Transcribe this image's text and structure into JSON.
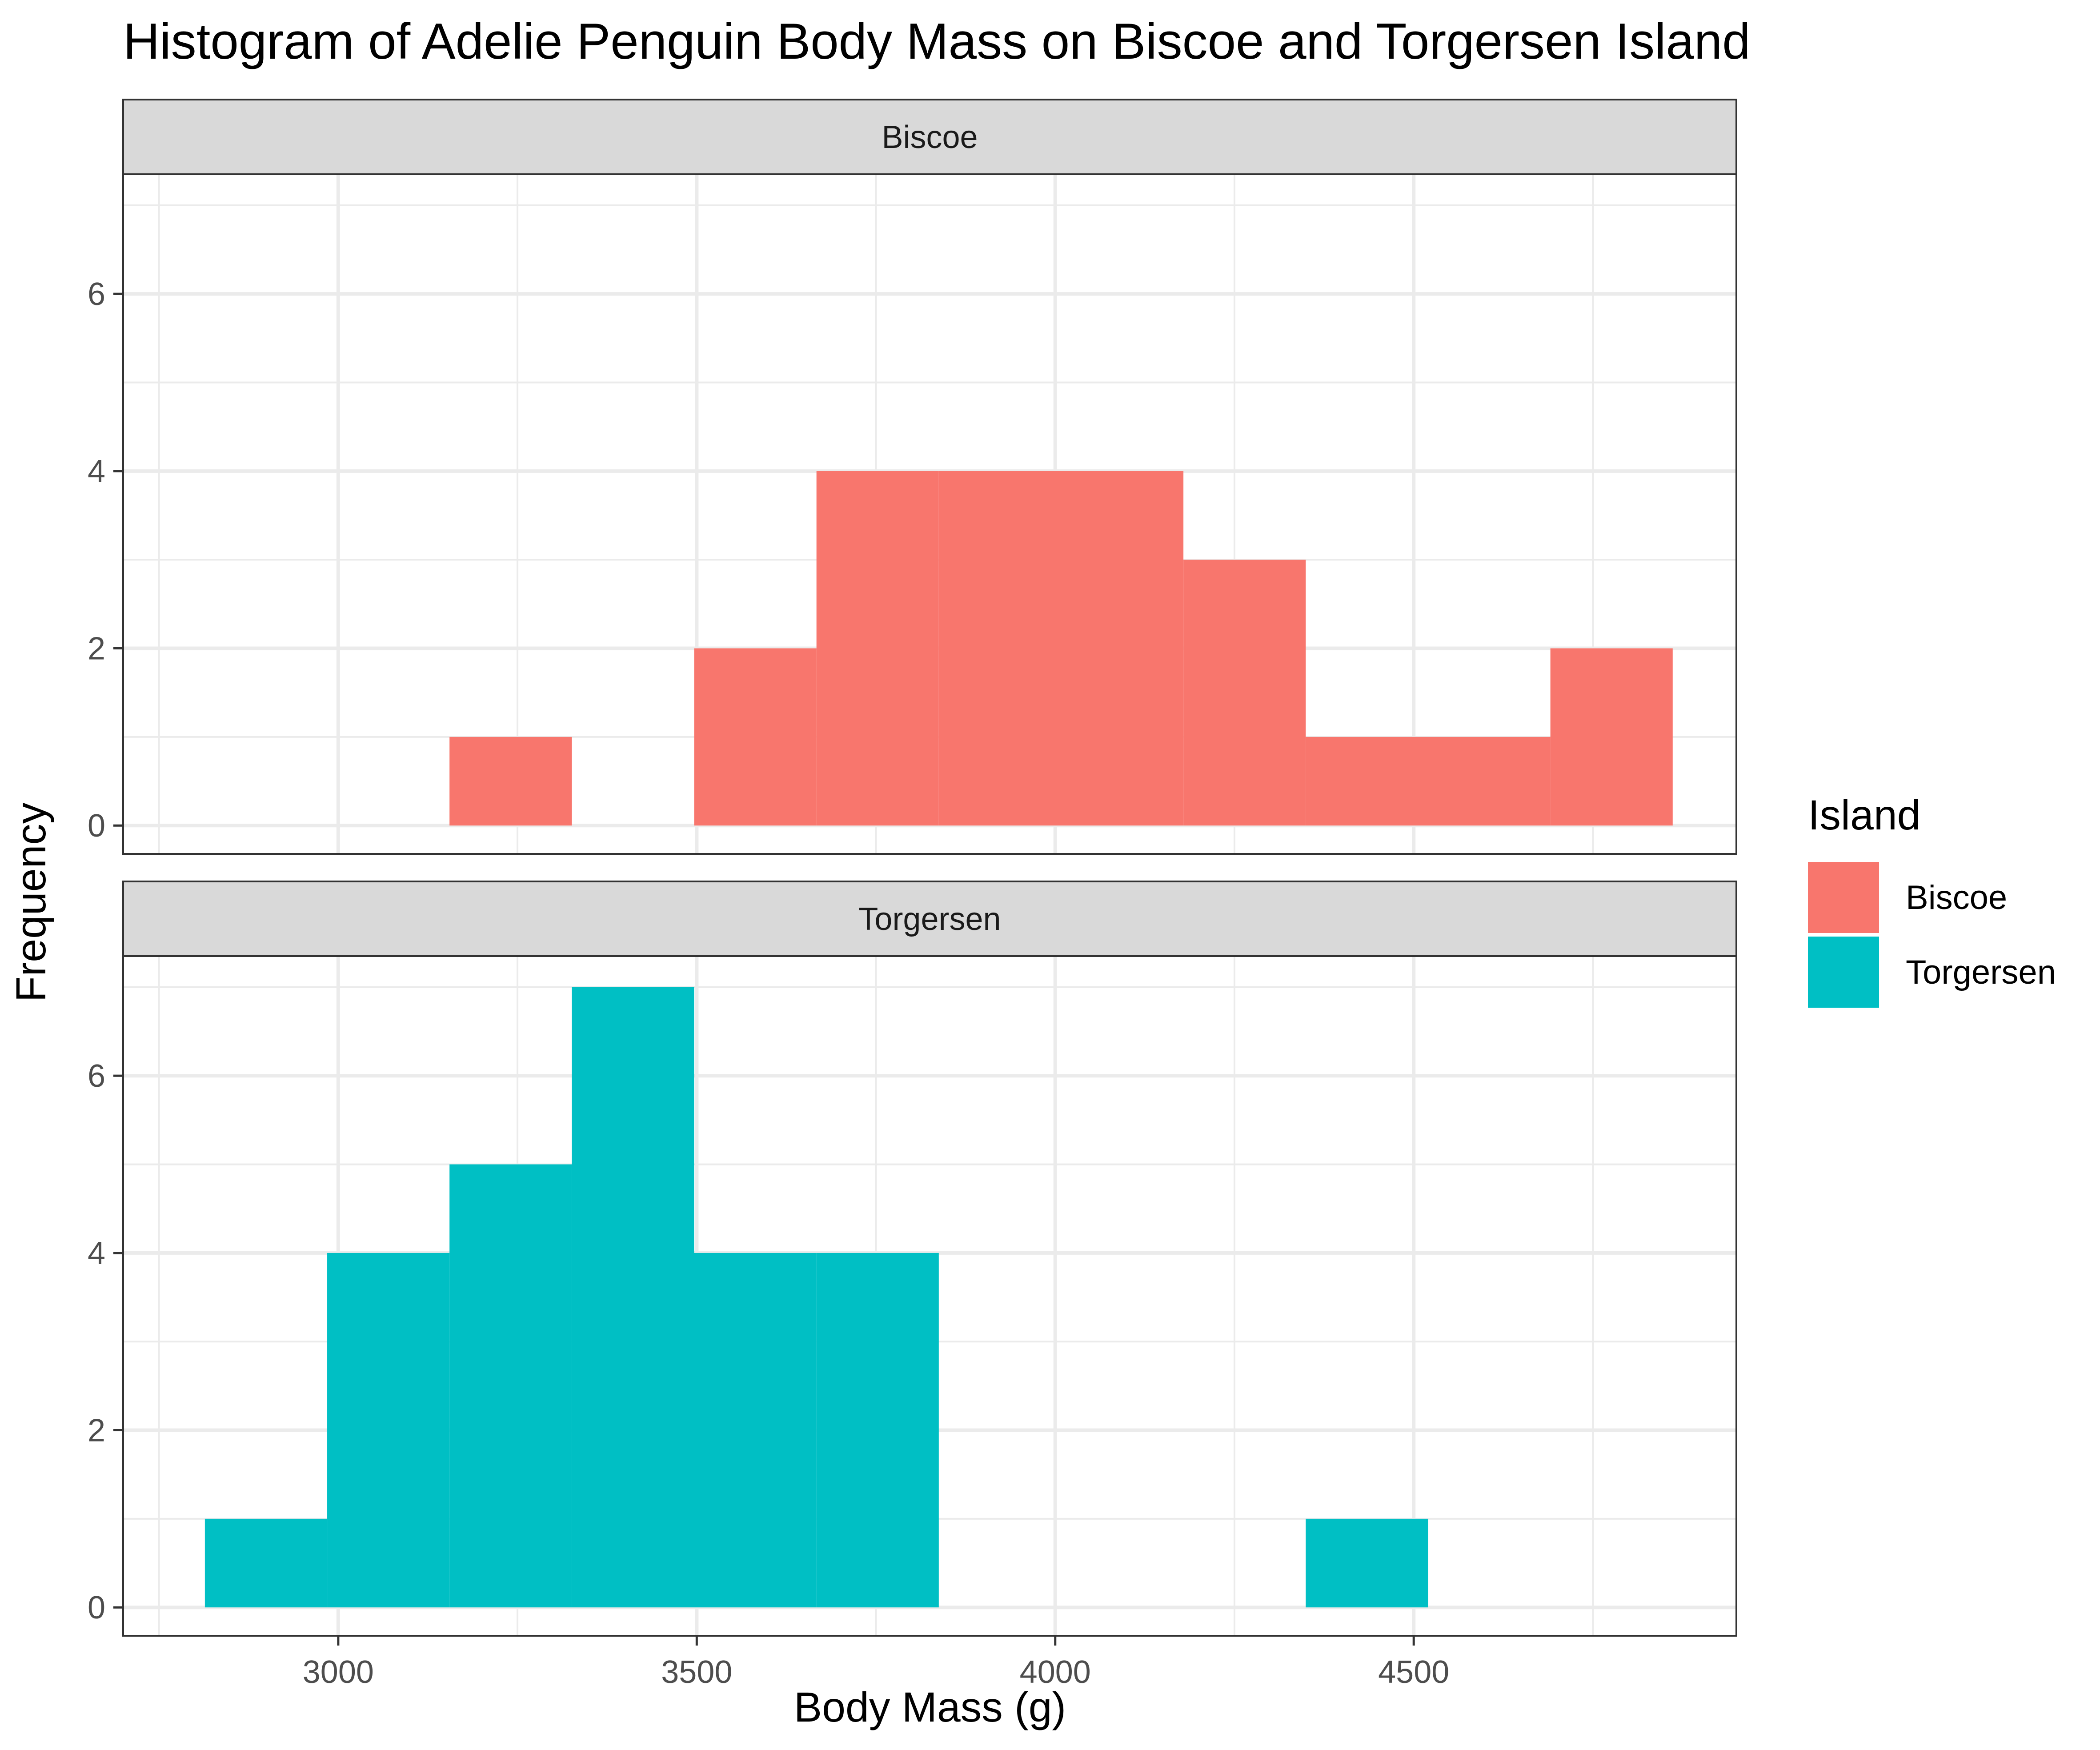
{
  "chart_data": {
    "type": "bar",
    "title": "Histogram of Adelie Penguin Body Mass on Biscoe and Torgersen Island",
    "xlabel": "Body Mass (g)",
    "ylabel": "Frequency",
    "xlim": [
      2700,
      4950
    ],
    "ylim": [
      -0.32,
      7.35
    ],
    "x_ticks": [
      3000,
      3500,
      4000,
      4500
    ],
    "x_minor_ticks": [
      2750,
      3250,
      3750,
      4250,
      4750
    ],
    "y_ticks": [
      0,
      2,
      4,
      6
    ],
    "y_minor_ticks": [
      1,
      3,
      5,
      7
    ],
    "bin_width": 170.6,
    "bin_start": 2814,
    "grid": true,
    "legend": {
      "title": "Island",
      "placement": "right",
      "entries": [
        {
          "label": "Biscoe",
          "color": "#F8766D"
        },
        {
          "label": "Torgersen",
          "color": "#00BFC4"
        }
      ]
    },
    "panels": [
      {
        "name": "Biscoe",
        "color": "#F8766D",
        "counts": [
          0,
          0,
          1,
          0,
          2,
          4,
          4,
          4,
          3,
          1,
          1,
          2
        ]
      },
      {
        "name": "Torgersen",
        "color": "#00BFC4",
        "counts": [
          1,
          4,
          5,
          7,
          4,
          4,
          0,
          0,
          0,
          1,
          0,
          0
        ]
      }
    ]
  }
}
